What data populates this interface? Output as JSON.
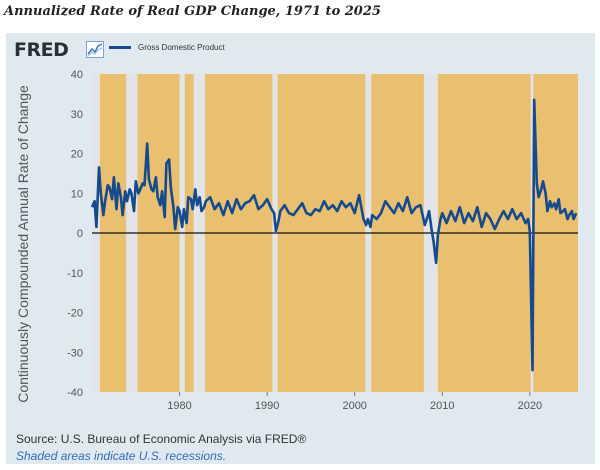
{
  "title": "Annualized Rate of Real GDP Change, 1971 to 2025",
  "logo": "FRED",
  "source": "Source: U.S. Bureau of Economic Analysis via FRED®",
  "note": "Shaded areas indicate U.S. recessions.",
  "colors": {
    "line": "#154a8d",
    "plot_background": "#e9bf70",
    "recession_band": "#e2e4e7",
    "panel": "#e1e9f0"
  },
  "chart_data": {
    "type": "line",
    "title": "Annualized Rate of Real GDP Change, 1971 to 2025",
    "xlabel": "",
    "ylabel": "Continuously Compounded Annual Rate of Change",
    "xlim": [
      1970.0,
      2025.5
    ],
    "ylim": [
      -40,
      40
    ],
    "yticks": [
      40,
      30,
      20,
      10,
      0,
      -10,
      -20,
      -30,
      -40
    ],
    "xticks": [
      1980,
      1990,
      2000,
      2010,
      2020
    ],
    "grid": false,
    "legend": "top-left",
    "recessions": [
      [
        1970.0,
        1970.9
      ],
      [
        1973.9,
        1975.2
      ],
      [
        1980.0,
        1980.6
      ],
      [
        1981.6,
        1982.9
      ],
      [
        1990.6,
        1991.2
      ],
      [
        2001.2,
        2001.9
      ],
      [
        2007.9,
        2009.5
      ],
      [
        2020.1,
        2020.4
      ]
    ],
    "series": [
      {
        "name": "Gross Domestic Product",
        "x": [
          1970.0,
          1970.3,
          1970.5,
          1970.8,
          1971.0,
          1971.3,
          1971.5,
          1971.8,
          1972.0,
          1972.3,
          1972.5,
          1972.8,
          1973.0,
          1973.3,
          1973.5,
          1973.8,
          1974.0,
          1974.3,
          1974.5,
          1974.8,
          1975.0,
          1975.3,
          1975.5,
          1975.8,
          1976.0,
          1976.3,
          1976.5,
          1976.8,
          1977.0,
          1977.3,
          1977.5,
          1977.8,
          1978.0,
          1978.3,
          1978.5,
          1978.8,
          1979.0,
          1979.3,
          1979.5,
          1979.8,
          1980.0,
          1980.3,
          1980.5,
          1980.8,
          1981.0,
          1981.3,
          1981.5,
          1981.8,
          1982.0,
          1982.3,
          1982.5,
          1982.8,
          1983.0,
          1983.5,
          1984.0,
          1984.5,
          1985.0,
          1985.5,
          1986.0,
          1986.5,
          1987.0,
          1987.5,
          1988.0,
          1988.5,
          1989.0,
          1989.5,
          1990.0,
          1990.5,
          1990.8,
          1991.0,
          1991.3,
          1991.5,
          1992.0,
          1992.5,
          1993.0,
          1993.5,
          1994.0,
          1994.5,
          1995.0,
          1995.5,
          1996.0,
          1996.5,
          1997.0,
          1997.5,
          1998.0,
          1998.5,
          1999.0,
          1999.5,
          2000.0,
          2000.5,
          2000.8,
          2001.0,
          2001.3,
          2001.5,
          2001.8,
          2002.0,
          2002.5,
          2003.0,
          2003.5,
          2004.0,
          2004.5,
          2005.0,
          2005.5,
          2006.0,
          2006.5,
          2007.0,
          2007.5,
          2008.0,
          2008.3,
          2008.5,
          2008.8,
          2009.0,
          2009.3,
          2009.5,
          2009.8,
          2010.0,
          2010.5,
          2011.0,
          2011.5,
          2012.0,
          2012.5,
          2013.0,
          2013.5,
          2014.0,
          2014.5,
          2015.0,
          2015.5,
          2016.0,
          2016.5,
          2017.0,
          2017.5,
          2018.0,
          2018.5,
          2019.0,
          2019.5,
          2019.8,
          2020.0,
          2020.3,
          2020.5,
          2020.8,
          2021.0,
          2021.3,
          2021.5,
          2021.8,
          2022.0,
          2022.3,
          2022.5,
          2022.8,
          2023.0,
          2023.3,
          2023.5,
          2023.8,
          2024.0,
          2024.3,
          2024.5,
          2024.8,
          2025.0,
          2025.3
        ],
        "y": [
          6.5,
          8.0,
          1.5,
          16.5,
          10.0,
          4.5,
          8.0,
          12.0,
          11.5,
          8.5,
          14.0,
          6.0,
          12.5,
          9.0,
          4.5,
          10.5,
          8.0,
          11.0,
          10.0,
          5.5,
          13.0,
          10.0,
          11.0,
          12.5,
          12.0,
          22.5,
          13.5,
          11.0,
          10.5,
          14.0,
          9.0,
          7.0,
          10.5,
          4.0,
          17.5,
          18.5,
          11.5,
          6.5,
          1.0,
          6.5,
          5.5,
          1.5,
          6.0,
          2.5,
          9.0,
          8.5,
          6.0,
          11.0,
          7.0,
          9.0,
          5.5,
          6.5,
          8.0,
          9.0,
          6.0,
          7.5,
          4.5,
          8.0,
          5.0,
          8.5,
          6.0,
          7.5,
          8.0,
          9.5,
          6.0,
          7.0,
          8.5,
          6.0,
          5.0,
          0.5,
          3.0,
          5.5,
          7.0,
          5.0,
          4.5,
          6.0,
          7.5,
          5.0,
          4.5,
          6.0,
          5.5,
          8.0,
          6.0,
          7.0,
          5.5,
          8.0,
          6.5,
          7.5,
          5.0,
          9.5,
          6.0,
          3.5,
          2.0,
          3.5,
          1.5,
          4.5,
          3.5,
          5.0,
          8.0,
          6.5,
          5.0,
          7.5,
          5.5,
          9.0,
          5.0,
          6.5,
          7.0,
          2.0,
          4.0,
          5.5,
          0.5,
          -2.0,
          -7.5,
          -0.5,
          3.5,
          5.0,
          2.5,
          5.5,
          3.0,
          6.5,
          2.5,
          5.0,
          3.0,
          6.5,
          1.5,
          5.0,
          3.5,
          1.0,
          3.5,
          5.5,
          3.5,
          6.0,
          3.5,
          5.0,
          2.5,
          3.5,
          0.5,
          -34.5,
          33.5,
          12.5,
          9.0,
          11.0,
          13.0,
          10.0,
          5.5,
          8.0,
          6.5,
          7.5,
          6.0,
          8.5,
          5.0,
          5.5,
          6.0,
          3.5,
          4.5,
          5.5,
          3.5,
          5.0
        ]
      }
    ]
  }
}
